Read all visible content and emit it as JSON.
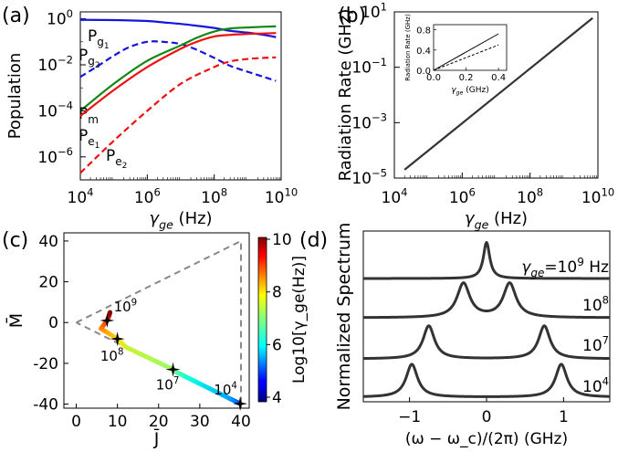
{
  "panel_labels": [
    "(a)",
    "(b)",
    "(c)",
    "(d)"
  ],
  "colors": {
    "blue": "#1515e0",
    "red": "#ee1111",
    "green": "#118811",
    "dark": "#333333",
    "gray_dash": "#888888"
  },
  "chart_data": [
    {
      "id": "a",
      "type": "line",
      "panel": "(a)",
      "xscale": "log",
      "yscale": "log",
      "xlim": [
        10000.0,
        10000000000.0
      ],
      "ylim": [
        1e-07,
        2
      ],
      "xlabel": "γ_ge (Hz)",
      "ylabel": "Population",
      "xticks": [
        10000.0,
        1000000.0,
        100000000.0,
        10000000000.0
      ],
      "xtick_labels": [
        "10^4",
        "10^6",
        "10^8",
        "10^10"
      ],
      "yticks": [
        1,
        0.01,
        0.0001,
        1e-06
      ],
      "ytick_labels": [
        "10^0",
        "10^-2",
        "10^-4",
        "10^-6"
      ],
      "series": [
        {
          "name": "Pg1",
          "label_base": "P",
          "label_sub": "g",
          "label_subsub": "1",
          "color": "blue",
          "dash": false,
          "x": [
            10000.0,
            100000.0,
            1000000.0,
            3000000.0,
            10000000.0,
            30000000.0,
            100000000.0,
            300000000.0,
            1000000000.0,
            3000000000.0,
            7000000000.0
          ],
          "y": [
            0.9,
            0.88,
            0.8,
            0.7,
            0.6,
            0.5,
            0.4,
            0.3,
            0.25,
            0.2,
            0.16
          ]
        },
        {
          "name": "Pg2",
          "label_base": "P",
          "label_sub": "g",
          "label_subsub": "2",
          "color": "blue",
          "dash": true,
          "x": [
            10000.0,
            30000.0,
            100000.0,
            300000.0,
            1000000.0,
            3000000.0,
            10000000.0,
            30000000.0,
            100000000.0,
            300000000.0,
            1000000000.0,
            3000000000.0,
            7000000000.0
          ],
          "y": [
            0.003,
            0.008,
            0.025,
            0.06,
            0.1,
            0.1,
            0.08,
            0.045,
            0.02,
            0.009,
            0.005,
            0.003,
            0.002
          ]
        },
        {
          "name": "Pm",
          "label_base": "P",
          "label_sub": "m",
          "label_subsub": "",
          "color": "green",
          "dash": false,
          "x": [
            10000.0,
            100000.0,
            1000000.0,
            10000000.0,
            30000000.0,
            100000000.0,
            300000000.0,
            1000000000.0,
            3000000000.0,
            7000000000.0
          ],
          "y": [
            0.0001,
            0.0015,
            0.015,
            0.07,
            0.15,
            0.28,
            0.38,
            0.42,
            0.45,
            0.47
          ]
        },
        {
          "name": "Pe1",
          "label_base": "P",
          "label_sub": "e",
          "label_subsub": "1",
          "color": "red",
          "dash": false,
          "x": [
            10000.0,
            100000.0,
            1000000.0,
            10000000.0,
            30000000.0,
            100000000.0,
            300000000.0,
            1000000000.0,
            3000000000.0,
            7000000000.0
          ],
          "y": [
            6e-05,
            0.0008,
            0.008,
            0.05,
            0.1,
            0.17,
            0.2,
            0.22,
            0.23,
            0.24
          ]
        },
        {
          "name": "Pe2",
          "label_base": "P",
          "label_sub": "e",
          "label_subsub": "2",
          "color": "red",
          "dash": true,
          "x": [
            10000.0,
            100000.0,
            1000000.0,
            10000000.0,
            100000000.0,
            300000000.0,
            1000000000.0,
            3000000000.0,
            7000000000.0
          ],
          "y": [
            2e-07,
            5e-06,
            0.0001,
            0.0015,
            0.008,
            0.014,
            0.018,
            0.02,
            0.021
          ]
        }
      ]
    },
    {
      "id": "b",
      "type": "line",
      "panel": "(b)",
      "xscale": "log",
      "yscale": "log",
      "xlim": [
        10000.0,
        10000000000.0
      ],
      "ylim": [
        1e-05,
        10
      ],
      "xlabel": "γ_ge (Hz)",
      "ylabel": "Radiation Rate (GHz)",
      "xticks": [
        10000.0,
        1000000.0,
        100000000.0,
        10000000000.0
      ],
      "xtick_labels": [
        "10^4",
        "10^6",
        "10^8",
        "10^10"
      ],
      "yticks": [
        10,
        0.1,
        0.001,
        1e-05
      ],
      "ytick_labels": [
        "10^1",
        "10^-1",
        "10^-3",
        "10^-5"
      ],
      "series": [
        {
          "name": "rate",
          "color": "dark",
          "x": [
            20000.0,
            7000000000.0
          ],
          "y": [
            2e-05,
            6
          ]
        }
      ],
      "inset": {
        "type": "line",
        "xlim": [
          0,
          0.45
        ],
        "ylim": [
          0,
          0.9
        ],
        "xlabel": "γ_ge (GHz)",
        "ylabel": "Radiation Rate (GHz)",
        "xticks": [
          0.0,
          0.2,
          0.4
        ],
        "xtick_labels": [
          "0.0",
          "0.2",
          "0.4"
        ],
        "yticks": [
          0.0,
          0.4,
          0.8
        ],
        "ytick_labels": [
          "0.0",
          "0.4",
          "0.8"
        ],
        "series": [
          {
            "name": "solid",
            "dash": false,
            "x": [
              0,
              0.4
            ],
            "y": [
              0,
              0.72
            ]
          },
          {
            "name": "dashed",
            "dash": true,
            "x": [
              0,
              0.4
            ],
            "y": [
              0,
              0.5
            ]
          }
        ]
      }
    },
    {
      "id": "c",
      "type": "scatter",
      "panel": "(c)",
      "xlim": [
        -3,
        42
      ],
      "ylim": [
        -42,
        44
      ],
      "xlabel": "J̄",
      "ylabel": "M̄",
      "xticks": [
        0,
        10,
        20,
        30,
        40
      ],
      "xtick_labels": [
        "0",
        "10",
        "20",
        "30",
        "40"
      ],
      "yticks": [
        40,
        20,
        0,
        -20,
        -40
      ],
      "ytick_labels": [
        "40",
        "20",
        "0",
        "-20",
        "-40"
      ],
      "boundary": {
        "x": [
          0,
          40,
          40,
          0
        ],
        "y": [
          0,
          40,
          -40,
          0
        ]
      },
      "trajectory": {
        "log10_gamma": [
          4.0,
          4.5,
          5.0,
          5.5,
          6.0,
          6.5,
          7.0,
          7.5,
          8.0,
          8.5,
          9.0,
          9.5,
          10.0
        ],
        "J": [
          39.8,
          39.0,
          37.0,
          32.5,
          27.5,
          24.0,
          23.5,
          12.0,
          10.0,
          6.0,
          7.5,
          8.0,
          8.2
        ],
        "M": [
          -39.8,
          -39.0,
          -37.0,
          -32.5,
          -27.5,
          -24.0,
          -23.0,
          -12.0,
          -8.0,
          -3.0,
          1.0,
          3.5,
          5.0
        ]
      },
      "markers": [
        {
          "label": "10^4",
          "J": 39.8,
          "M": -39.8
        },
        {
          "label": "10^7",
          "J": 23.5,
          "M": -23.0
        },
        {
          "label": "10^8",
          "J": 10.0,
          "M": -8.0
        },
        {
          "label": "10^9",
          "J": 7.5,
          "M": 1.0
        }
      ],
      "colorbar": {
        "label": "Log10[γ_ge(Hz)]",
        "range": [
          4,
          10
        ],
        "ticks": [
          4,
          6,
          8,
          10
        ],
        "tick_labels": [
          "4",
          "6",
          "8",
          "10"
        ]
      }
    },
    {
      "id": "d",
      "type": "line",
      "panel": "(d)",
      "xlim": [
        -1.6,
        1.6
      ],
      "xlabel": "(ω − ω_c)/(2π) (GHz)",
      "ylabel": "Normalized Spectrum",
      "xticks": [
        -1,
        0,
        1
      ],
      "xtick_labels": [
        "−1",
        "0",
        "1"
      ],
      "series": [
        {
          "name": "10^9",
          "label_prefix": "γ_ge=",
          "label": "10^9",
          "label_suffix": " Hz",
          "peaks": [
            {
              "center": 0.0,
              "width": 0.05,
              "amp": 0.9
            }
          ],
          "baseline": 0
        },
        {
          "name": "10^8",
          "label": "10^8",
          "peaks": [
            {
              "center": -0.3,
              "width": 0.1,
              "amp": 0.85
            },
            {
              "center": 0.3,
              "width": 0.1,
              "amp": 0.85
            }
          ],
          "baseline": 1
        },
        {
          "name": "10^7",
          "label": "10^7",
          "peaks": [
            {
              "center": -0.75,
              "width": 0.09,
              "amp": 0.82
            },
            {
              "center": 0.75,
              "width": 0.09,
              "amp": 0.82
            }
          ],
          "baseline": 2
        },
        {
          "name": "10^4",
          "label": "10^4",
          "peaks": [
            {
              "center": -0.97,
              "width": 0.09,
              "amp": 0.82
            },
            {
              "center": 0.97,
              "width": 0.09,
              "amp": 0.82
            }
          ],
          "baseline": 3
        }
      ]
    }
  ]
}
